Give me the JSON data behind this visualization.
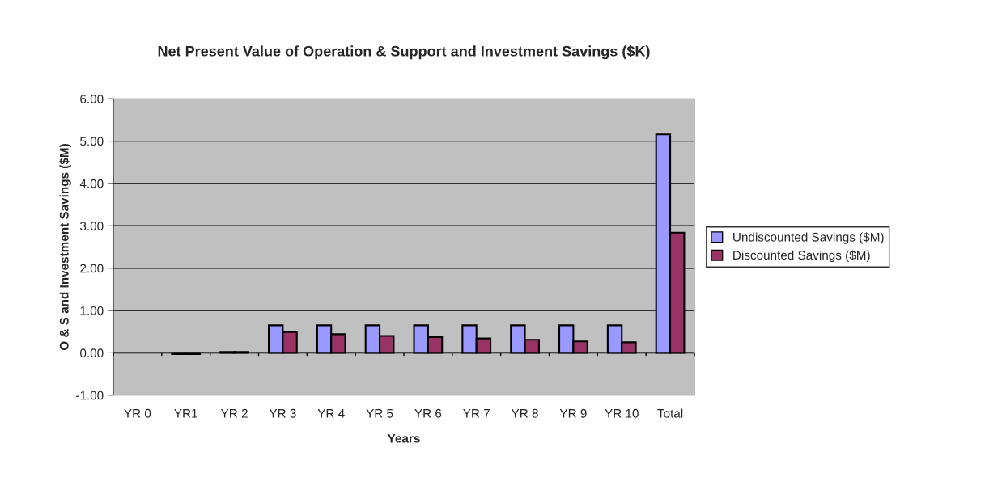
{
  "chart_data": {
    "type": "bar",
    "title": "Net Present Value of Operation & Support and Investment Savings ($K)",
    "xlabel": "Years",
    "ylabel": "O & S and Investment Savings ($M)",
    "categories": [
      "YR 0",
      "YR1",
      "YR 2",
      "YR 3",
      "YR 4",
      "YR 5",
      "YR 6",
      "YR 7",
      "YR 8",
      "YR 9",
      "YR 10",
      "Total"
    ],
    "series": [
      {
        "name": "Undiscounted Savings ($M)",
        "color": "#9999ff",
        "values": [
          null,
          -0.03,
          0.02,
          0.65,
          0.65,
          0.65,
          0.65,
          0.65,
          0.65,
          0.65,
          0.65,
          5.16
        ]
      },
      {
        "name": "Discounted Savings ($M)",
        "color": "#993366",
        "values": [
          null,
          -0.03,
          0.02,
          0.49,
          0.44,
          0.4,
          0.37,
          0.34,
          0.31,
          0.27,
          0.25,
          2.84
        ]
      }
    ],
    "ylim": [
      -1,
      6
    ],
    "yticks": [
      {
        "value": -1,
        "label": "-1.00"
      },
      {
        "value": 0,
        "label": "0.00"
      },
      {
        "value": 1,
        "label": "1.00"
      },
      {
        "value": 2,
        "label": "2.00"
      },
      {
        "value": 3,
        "label": "3.00"
      },
      {
        "value": 4,
        "label": "4.00"
      },
      {
        "value": 5,
        "label": "5.00"
      },
      {
        "value": 6,
        "label": "6.00"
      }
    ],
    "grid": "y",
    "legend": "right"
  }
}
